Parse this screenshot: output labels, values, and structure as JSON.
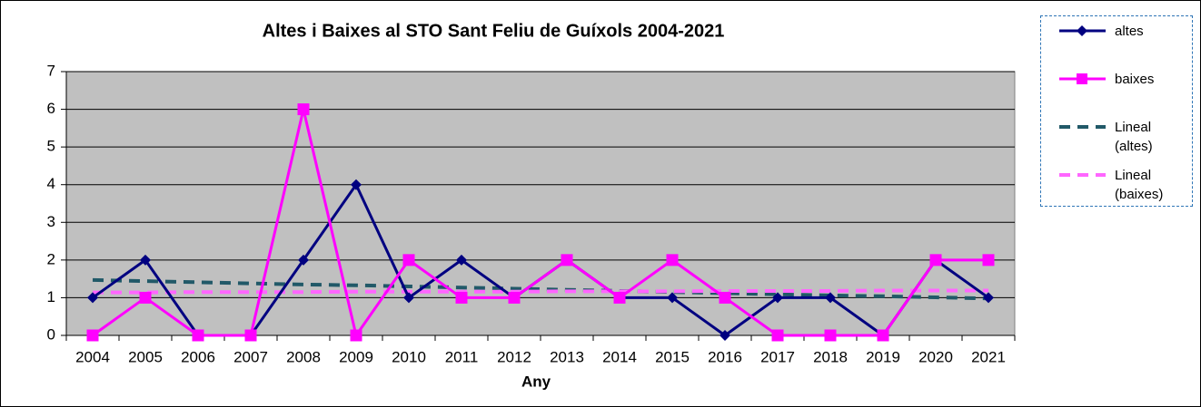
{
  "chart_data": {
    "type": "line",
    "title": "Altes i Baixes al STO Sant Feliu de Guíxols  2004-2021",
    "x_label": "Any",
    "categories": [
      "2004",
      "2005",
      "2006",
      "2007",
      "2008",
      "2009",
      "2010",
      "2011",
      "2012",
      "2013",
      "2014",
      "2015",
      "2016",
      "2017",
      "2018",
      "2019",
      "2020",
      "2021"
    ],
    "series": [
      {
        "name": "altes",
        "color": "#000080",
        "marker": "diamond",
        "dashed": false,
        "values": [
          1,
          2,
          0,
          0,
          2,
          4,
          1,
          2,
          1,
          2,
          1,
          1,
          0,
          1,
          1,
          0,
          2,
          1
        ]
      },
      {
        "name": "baixes",
        "color": "#ff00ff",
        "marker": "square",
        "dashed": false,
        "values": [
          0,
          1,
          0,
          0,
          6,
          0,
          2,
          1,
          1,
          2,
          1,
          2,
          1,
          0,
          0,
          0,
          2,
          2
        ]
      },
      {
        "name": "Lineal (altes)",
        "color": "#215968",
        "marker": "none",
        "dashed": true,
        "values": [
          1.47,
          1.44,
          1.41,
          1.38,
          1.35,
          1.33,
          1.3,
          1.27,
          1.24,
          1.21,
          1.18,
          1.15,
          1.12,
          1.09,
          1.06,
          1.04,
          1.01,
          0.98
        ]
      },
      {
        "name": "Lineal (baixes)",
        "color": "#ff66ff",
        "marker": "none",
        "dashed": true,
        "values": [
          1.14,
          1.14,
          1.15,
          1.15,
          1.15,
          1.16,
          1.16,
          1.16,
          1.16,
          1.17,
          1.17,
          1.17,
          1.18,
          1.18,
          1.18,
          1.19,
          1.19,
          1.19
        ]
      }
    ],
    "ylim": [
      0,
      7
    ],
    "yticks": [
      0,
      1,
      2,
      3,
      4,
      5,
      6,
      7
    ],
    "grid": true,
    "plot_background": "#c0c0c0",
    "legend": "right"
  }
}
